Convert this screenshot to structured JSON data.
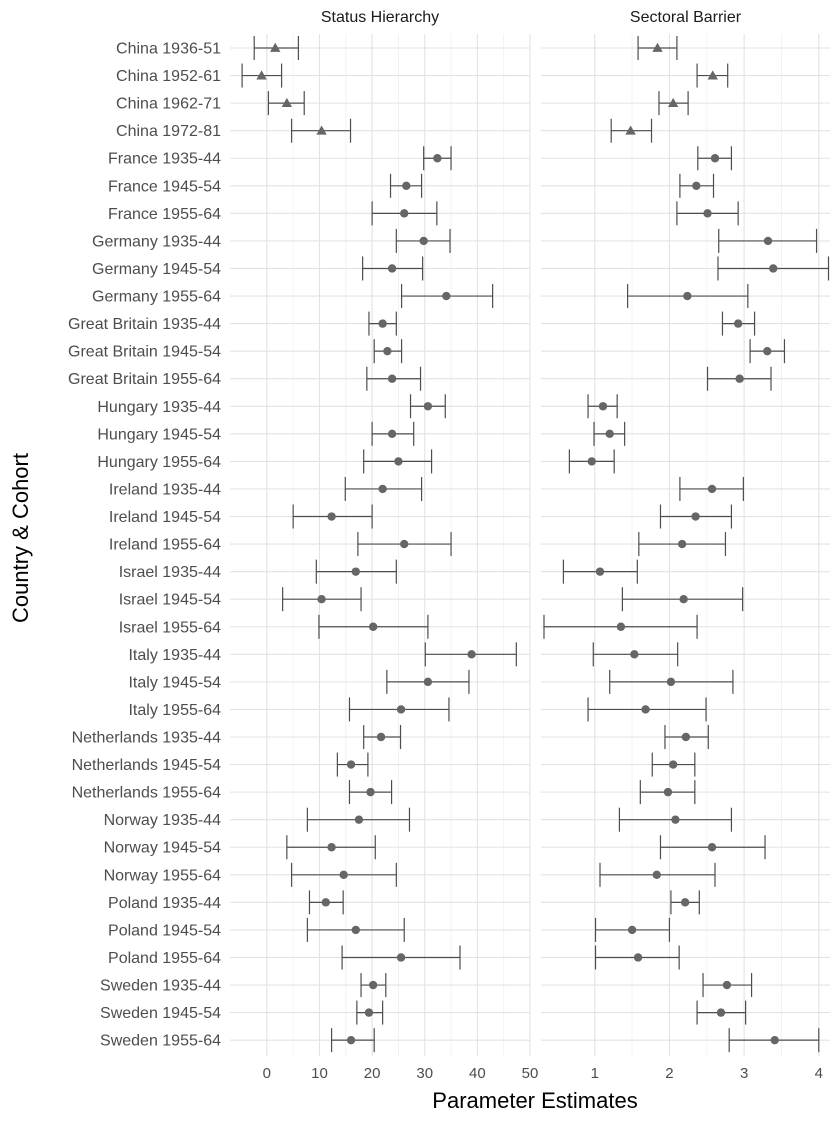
{
  "chart_data": {
    "type": "errorbar",
    "ylabel": "Country & Cohort",
    "xlabel": "Parameter Estimates",
    "categories": [
      "China 1936-51",
      "China 1952-61",
      "China 1962-71",
      "China 1972-81",
      "France 1935-44",
      "France 1945-54",
      "France 1955-64",
      "Germany 1935-44",
      "Germany 1945-54",
      "Germany 1955-64",
      "Great Britain 1935-44",
      "Great Britain 1945-54",
      "Great Britain 1955-64",
      "Hungary 1935-44",
      "Hungary 1945-54",
      "Hungary 1955-64",
      "Ireland 1935-44",
      "Ireland 1945-54",
      "Ireland 1955-64",
      "Israel 1935-44",
      "Israel 1945-54",
      "Israel 1955-64",
      "Italy 1935-44",
      "Italy 1945-54",
      "Italy 1955-64",
      "Netherlands 1935-44",
      "Netherlands 1945-54",
      "Netherlands 1955-64",
      "Norway 1935-44",
      "Norway 1945-54",
      "Norway 1955-64",
      "Poland 1935-44",
      "Poland 1945-54",
      "Poland 1955-64",
      "Sweden 1935-44",
      "Sweden 1945-54",
      "Sweden 1955-64"
    ],
    "marker_shapes": [
      "triangle",
      "triangle",
      "triangle",
      "triangle",
      "circle",
      "circle",
      "circle",
      "circle",
      "circle",
      "circle",
      "circle",
      "circle",
      "circle",
      "circle",
      "circle",
      "circle",
      "circle",
      "circle",
      "circle",
      "circle",
      "circle",
      "circle",
      "circle",
      "circle",
      "circle",
      "circle",
      "circle",
      "circle",
      "circle",
      "circle",
      "circle",
      "circle",
      "circle",
      "circle",
      "circle",
      "circle",
      "circle"
    ],
    "marker_color": "#666666",
    "errorbar_color": "#4d4d4d",
    "grid": true,
    "panels": [
      {
        "title": "Status Hierarchy",
        "xlim": [
          -7,
          50
        ],
        "xticks": [
          0,
          10,
          20,
          30,
          40,
          50
        ],
        "estimate": [
          1.6,
          -1.0,
          3.8,
          10.4,
          32.4,
          26.5,
          26.1,
          29.8,
          23.8,
          34.1,
          22.0,
          22.9,
          23.8,
          30.6,
          23.8,
          25.0,
          22.0,
          12.3,
          26.1,
          16.9,
          10.4,
          20.2,
          38.9,
          30.6,
          25.5,
          21.7,
          16.0,
          19.7,
          17.5,
          12.3,
          14.6,
          11.2,
          16.9,
          25.5,
          20.2,
          19.4,
          16.0
        ],
        "lower": [
          -2.4,
          -4.7,
          0.3,
          4.7,
          29.8,
          23.5,
          20.0,
          24.6,
          18.2,
          25.6,
          19.4,
          20.4,
          19.0,
          27.3,
          20.0,
          18.4,
          14.9,
          5.0,
          17.3,
          9.4,
          3.0,
          9.9,
          30.1,
          22.8,
          15.7,
          18.4,
          13.4,
          15.7,
          7.7,
          3.8,
          4.7,
          8.1,
          7.7,
          14.3,
          17.9,
          17.1,
          12.3
        ],
        "upper": [
          6.0,
          2.8,
          7.1,
          15.9,
          35.0,
          29.4,
          32.3,
          34.8,
          29.6,
          42.9,
          24.6,
          25.6,
          29.2,
          33.9,
          27.9,
          31.3,
          29.4,
          20.0,
          35.0,
          24.6,
          17.9,
          30.6,
          47.4,
          38.4,
          34.6,
          25.4,
          19.2,
          23.7,
          27.1,
          20.6,
          24.6,
          14.5,
          26.1,
          36.7,
          22.6,
          22.0,
          20.4
        ]
      },
      {
        "title": "Sectoral Barrier",
        "xlim": [
          0.28,
          4.15
        ],
        "xticks": [
          1,
          2,
          3,
          4
        ],
        "estimate": [
          1.84,
          2.58,
          2.05,
          1.48,
          2.61,
          2.36,
          2.51,
          3.32,
          3.39,
          2.24,
          2.92,
          3.31,
          2.94,
          1.11,
          1.2,
          0.96,
          2.57,
          2.35,
          2.17,
          1.07,
          2.19,
          1.35,
          1.53,
          2.02,
          1.68,
          2.22,
          2.05,
          1.98,
          2.08,
          2.57,
          1.83,
          2.21,
          1.5,
          1.58,
          2.77,
          2.69,
          3.41
        ],
        "lower": [
          1.58,
          2.37,
          1.86,
          1.22,
          2.38,
          2.14,
          2.1,
          2.66,
          2.65,
          1.44,
          2.71,
          3.08,
          2.51,
          0.91,
          0.99,
          0.66,
          2.14,
          1.88,
          1.59,
          0.58,
          1.37,
          0.32,
          0.98,
          1.2,
          0.91,
          1.94,
          1.77,
          1.61,
          1.33,
          1.88,
          1.07,
          2.02,
          1.01,
          1.01,
          2.45,
          2.37,
          2.8
        ],
        "upper": [
          2.1,
          2.78,
          2.25,
          1.76,
          2.83,
          2.59,
          2.92,
          3.97,
          4.13,
          3.05,
          3.14,
          3.54,
          3.36,
          1.3,
          1.4,
          1.26,
          2.99,
          2.83,
          2.75,
          1.57,
          2.98,
          2.37,
          2.11,
          2.85,
          2.49,
          2.52,
          2.34,
          2.34,
          2.83,
          3.28,
          2.61,
          2.4,
          2.0,
          2.13,
          3.1,
          3.02,
          4.0
        ]
      }
    ]
  }
}
